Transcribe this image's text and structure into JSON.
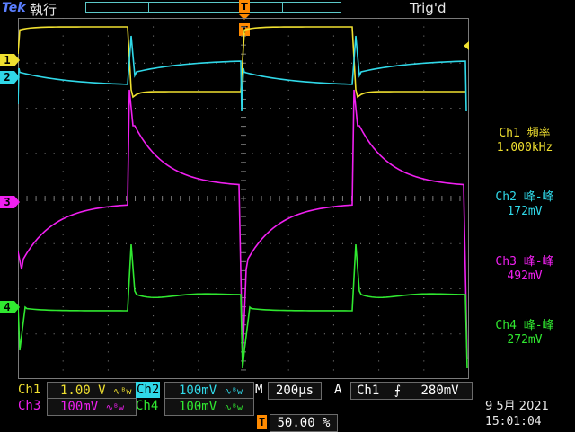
{
  "top": {
    "logo": "Tek",
    "run_state": "執行",
    "trigger_status": "Trig'd"
  },
  "channels": {
    "ch1": {
      "marker": "1",
      "color": "#f0e030"
    },
    "ch2": {
      "marker": "2",
      "color": "#30d8e8"
    },
    "ch3": {
      "marker": "3",
      "color": "#f020f0"
    },
    "ch4": {
      "marker": "4",
      "color": "#30e830"
    }
  },
  "trigger_marker": {
    "label": "T",
    "color": "#ff8a00"
  },
  "measurements": [
    {
      "title": "Ch1 頻率",
      "value": "1.000kHz",
      "color": "#f0e030"
    },
    {
      "title": "Ch2 峰-峰",
      "value": "172mV",
      "color": "#30d8e8"
    },
    {
      "title": "Ch3 峰-峰",
      "value": "492mV",
      "color": "#f020f0"
    },
    {
      "title": "Ch4 峰-峰",
      "value": "272mV",
      "color": "#30e830"
    }
  ],
  "bottom": {
    "ch1_label": "Ch1",
    "ch1_scale": "1.00 V",
    "ch2_label": "Ch2",
    "ch2_scale": "100mV",
    "ch3_label": "Ch3",
    "ch3_scale": "100mV",
    "ch4_label": "Ch4",
    "ch4_scale": "100mV",
    "bw_symbol": "∿ᴮw",
    "timebase_prefix": "M",
    "timebase": "200µs",
    "trig_mode": "A",
    "trig_source": "Ch1",
    "trig_slope": "⨍",
    "trig_level": "280mV",
    "trig_pos_icon": "T",
    "trig_position": "50.00 %",
    "date": "9 5月  2021",
    "time": "15:01:04"
  }
}
